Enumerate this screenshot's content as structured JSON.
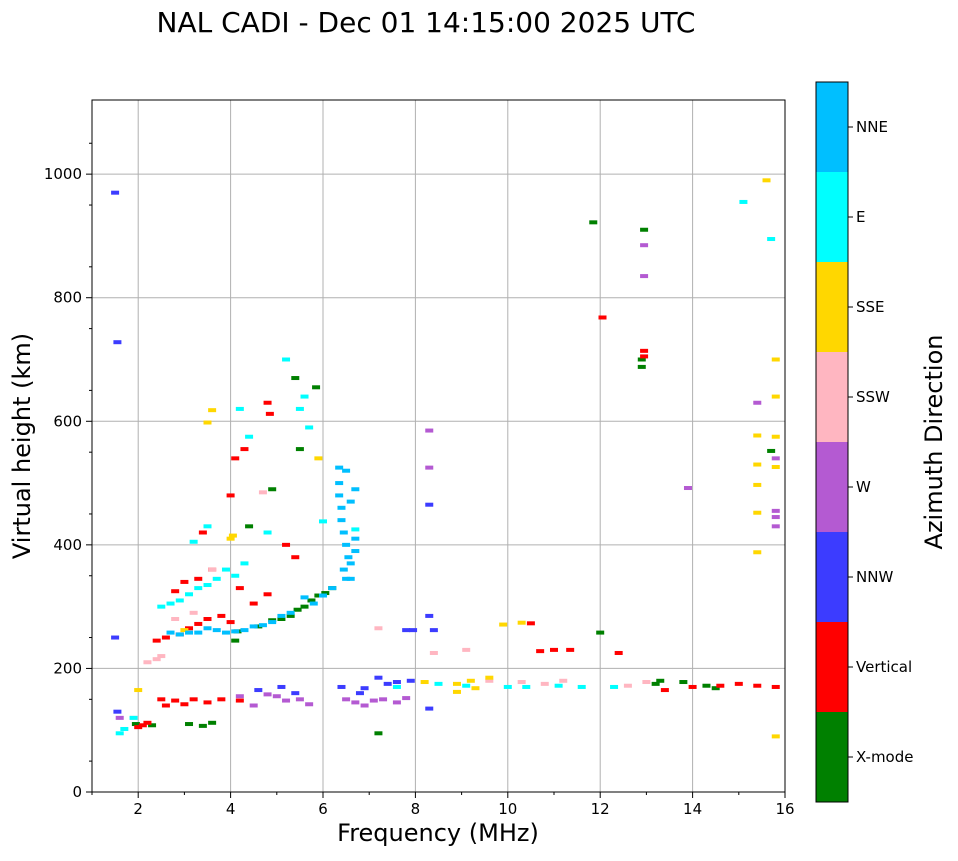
{
  "chart_data": {
    "type": "scatter",
    "title": "NAL CADI - Dec 01 14:15:00 2025 UTC",
    "xlabel": "Frequency (MHz)",
    "ylabel": "Virtual height (km)",
    "xlim": [
      1,
      16
    ],
    "ylim": [
      0,
      1120
    ],
    "xticks": [
      2,
      4,
      6,
      8,
      10,
      12,
      14,
      16
    ],
    "yticks": [
      0,
      200,
      400,
      600,
      800,
      1000
    ],
    "grid": true,
    "colorbar": {
      "label": "Azimuth Direction",
      "categories": [
        "X-mode",
        "Vertical",
        "NNW",
        "W",
        "SSW",
        "SSE",
        "E",
        "NNE"
      ],
      "colors": {
        "X-mode": "#008000",
        "Vertical": "#ff0000",
        "NNW": "#3c3cff",
        "W": "#b45ad2",
        "SSW": "#ffb6c1",
        "SSE": "#ffd700",
        "E": "#00ffff",
        "NNE": "#00bfff"
      }
    },
    "series": [
      {
        "name": "X-mode",
        "points": [
          [
            1.95,
            110
          ],
          [
            2.3,
            108
          ],
          [
            3.1,
            110
          ],
          [
            3.4,
            107
          ],
          [
            3.6,
            112
          ],
          [
            4.1,
            245
          ],
          [
            4.15,
            260
          ],
          [
            4.6,
            268
          ],
          [
            4.9,
            278
          ],
          [
            5.1,
            280
          ],
          [
            5.3,
            285
          ],
          [
            5.45,
            295
          ],
          [
            5.6,
            300
          ],
          [
            5.75,
            310
          ],
          [
            5.9,
            318
          ],
          [
            6.05,
            322
          ],
          [
            6.2,
            330
          ],
          [
            5.5,
            555
          ],
          [
            5.85,
            655
          ],
          [
            5.4,
            670
          ],
          [
            4.9,
            490
          ],
          [
            4.4,
            430
          ],
          [
            7.2,
            95
          ],
          [
            11.85,
            922
          ],
          [
            12.0,
            258
          ],
          [
            12.9,
            688
          ],
          [
            12.9,
            700
          ],
          [
            12.95,
            910
          ],
          [
            13.2,
            175
          ],
          [
            13.3,
            180
          ],
          [
            13.8,
            178
          ],
          [
            14.3,
            172
          ],
          [
            14.5,
            168
          ],
          [
            15.7,
            552
          ]
        ]
      },
      {
        "name": "Vertical",
        "points": [
          [
            2.0,
            105
          ],
          [
            2.1,
            108
          ],
          [
            2.2,
            112
          ],
          [
            2.5,
            150
          ],
          [
            2.6,
            140
          ],
          [
            2.8,
            148
          ],
          [
            3.0,
            142
          ],
          [
            3.2,
            150
          ],
          [
            3.5,
            145
          ],
          [
            3.8,
            150
          ],
          [
            4.2,
            148
          ],
          [
            2.4,
            245
          ],
          [
            2.6,
            250
          ],
          [
            2.9,
            255
          ],
          [
            3.1,
            265
          ],
          [
            3.3,
            272
          ],
          [
            3.5,
            280
          ],
          [
            3.8,
            285
          ],
          [
            4.0,
            275
          ],
          [
            2.8,
            325
          ],
          [
            3.0,
            340
          ],
          [
            3.3,
            345
          ],
          [
            3.6,
            360
          ],
          [
            4.2,
            330
          ],
          [
            4.5,
            305
          ],
          [
            4.8,
            320
          ],
          [
            3.4,
            420
          ],
          [
            4.0,
            480
          ],
          [
            4.1,
            540
          ],
          [
            4.3,
            555
          ],
          [
            4.8,
            630
          ],
          [
            4.85,
            612
          ],
          [
            5.2,
            400
          ],
          [
            5.4,
            380
          ],
          [
            10.5,
            273
          ],
          [
            10.7,
            228
          ],
          [
            11.0,
            230
          ],
          [
            11.35,
            230
          ],
          [
            12.4,
            225
          ],
          [
            12.05,
            768
          ],
          [
            12.95,
            714
          ],
          [
            12.95,
            705
          ],
          [
            13.4,
            165
          ],
          [
            14.0,
            170
          ],
          [
            14.6,
            172
          ],
          [
            15.0,
            175
          ],
          [
            15.4,
            172
          ],
          [
            15.8,
            170
          ]
        ]
      },
      {
        "name": "NNW",
        "points": [
          [
            1.5,
            970
          ],
          [
            1.55,
            728
          ],
          [
            1.5,
            250
          ],
          [
            1.55,
            130
          ],
          [
            4.6,
            165
          ],
          [
            5.1,
            170
          ],
          [
            5.4,
            160
          ],
          [
            6.4,
            170
          ],
          [
            6.8,
            160
          ],
          [
            6.9,
            168
          ],
          [
            7.2,
            185
          ],
          [
            7.4,
            175
          ],
          [
            7.6,
            178
          ],
          [
            7.9,
            180
          ],
          [
            8.3,
            135
          ],
          [
            8.3,
            285
          ],
          [
            8.4,
            262
          ],
          [
            8.3,
            465
          ],
          [
            7.8,
            262
          ],
          [
            7.95,
            262
          ]
        ]
      },
      {
        "name": "W",
        "points": [
          [
            1.6,
            120
          ],
          [
            4.2,
            155
          ],
          [
            4.5,
            140
          ],
          [
            4.8,
            158
          ],
          [
            5.0,
            155
          ],
          [
            5.2,
            148
          ],
          [
            5.5,
            150
          ],
          [
            5.7,
            142
          ],
          [
            6.5,
            150
          ],
          [
            6.7,
            145
          ],
          [
            6.9,
            140
          ],
          [
            7.1,
            148
          ],
          [
            7.3,
            150
          ],
          [
            7.6,
            145
          ],
          [
            7.8,
            152
          ],
          [
            8.3,
            585
          ],
          [
            8.3,
            525
          ],
          [
            12.95,
            835
          ],
          [
            12.95,
            885
          ],
          [
            13.9,
            492
          ],
          [
            15.4,
            630
          ],
          [
            15.8,
            455
          ],
          [
            15.8,
            445
          ],
          [
            15.8,
            430
          ],
          [
            15.8,
            540
          ]
        ]
      },
      {
        "name": "SSW",
        "points": [
          [
            1.9,
            120
          ],
          [
            2.2,
            210
          ],
          [
            2.4,
            215
          ],
          [
            2.5,
            220
          ],
          [
            2.8,
            280
          ],
          [
            3.2,
            290
          ],
          [
            3.6,
            360
          ],
          [
            4.7,
            485
          ],
          [
            7.2,
            265
          ],
          [
            8.4,
            225
          ],
          [
            9.1,
            230
          ],
          [
            9.6,
            180
          ],
          [
            10.3,
            178
          ],
          [
            10.8,
            175
          ],
          [
            11.2,
            180
          ],
          [
            12.6,
            172
          ],
          [
            13.0,
            178
          ]
        ]
      },
      {
        "name": "SSE",
        "points": [
          [
            2.0,
            165
          ],
          [
            3.0,
            262
          ],
          [
            3.6,
            618
          ],
          [
            3.5,
            598
          ],
          [
            4.05,
            415
          ],
          [
            4.0,
            410
          ],
          [
            5.9,
            540
          ],
          [
            8.9,
            175
          ],
          [
            9.2,
            180
          ],
          [
            9.6,
            185
          ],
          [
            8.9,
            162
          ],
          [
            9.3,
            168
          ],
          [
            9.9,
            271
          ],
          [
            10.3,
            274
          ],
          [
            8.2,
            178
          ],
          [
            15.6,
            990
          ],
          [
            15.4,
            577
          ],
          [
            15.4,
            530
          ],
          [
            15.4,
            497
          ],
          [
            15.4,
            452
          ],
          [
            15.4,
            388
          ],
          [
            15.8,
            700
          ],
          [
            15.8,
            640
          ],
          [
            15.8,
            575
          ],
          [
            15.8,
            526
          ],
          [
            15.8,
            90
          ]
        ]
      },
      {
        "name": "E",
        "points": [
          [
            1.6,
            95
          ],
          [
            1.7,
            102
          ],
          [
            1.9,
            120
          ],
          [
            2.5,
            300
          ],
          [
            2.7,
            305
          ],
          [
            2.9,
            310
          ],
          [
            3.1,
            320
          ],
          [
            3.3,
            330
          ],
          [
            3.5,
            335
          ],
          [
            3.7,
            345
          ],
          [
            3.9,
            360
          ],
          [
            4.1,
            350
          ],
          [
            4.3,
            370
          ],
          [
            3.2,
            405
          ],
          [
            3.5,
            430
          ],
          [
            4.2,
            620
          ],
          [
            4.4,
            575
          ],
          [
            5.5,
            620
          ],
          [
            5.6,
            640
          ],
          [
            5.7,
            590
          ],
          [
            5.2,
            700
          ],
          [
            4.8,
            420
          ],
          [
            6.0,
            438
          ],
          [
            6.7,
            425
          ],
          [
            7.6,
            170
          ],
          [
            8.5,
            175
          ],
          [
            9.1,
            172
          ],
          [
            10.0,
            170
          ],
          [
            10.4,
            170
          ],
          [
            11.1,
            172
          ],
          [
            11.6,
            170
          ],
          [
            12.3,
            170
          ],
          [
            15.1,
            955
          ],
          [
            15.7,
            895
          ]
        ]
      },
      {
        "name": "NNE",
        "points": [
          [
            6.35,
            525
          ],
          [
            6.35,
            500
          ],
          [
            6.35,
            480
          ],
          [
            6.4,
            460
          ],
          [
            6.4,
            440
          ],
          [
            6.45,
            420
          ],
          [
            6.5,
            400
          ],
          [
            6.55,
            380
          ],
          [
            6.45,
            360
          ],
          [
            6.5,
            345
          ],
          [
            6.6,
            345
          ],
          [
            6.5,
            520
          ],
          [
            6.7,
            490
          ],
          [
            6.6,
            470
          ],
          [
            6.7,
            410
          ],
          [
            6.7,
            390
          ],
          [
            6.6,
            370
          ],
          [
            5.6,
            315
          ],
          [
            5.8,
            305
          ],
          [
            6.0,
            318
          ],
          [
            6.2,
            330
          ],
          [
            5.3,
            290
          ],
          [
            5.1,
            285
          ],
          [
            4.9,
            275
          ],
          [
            4.7,
            270
          ],
          [
            4.5,
            268
          ],
          [
            4.3,
            262
          ],
          [
            4.1,
            260
          ],
          [
            3.9,
            258
          ],
          [
            3.7,
            262
          ],
          [
            3.5,
            265
          ],
          [
            3.3,
            258
          ],
          [
            3.1,
            258
          ],
          [
            2.9,
            255
          ],
          [
            2.7,
            258
          ]
        ]
      }
    ]
  }
}
